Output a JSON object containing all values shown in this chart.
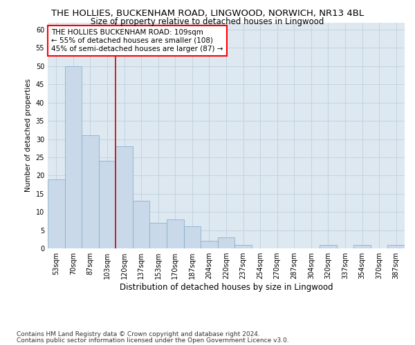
{
  "title": "THE HOLLIES, BUCKENHAM ROAD, LINGWOOD, NORWICH, NR13 4BL",
  "subtitle": "Size of property relative to detached houses in Lingwood",
  "xlabel": "Distribution of detached houses by size in Lingwood",
  "ylabel": "Number of detached properties",
  "categories": [
    "53sqm",
    "70sqm",
    "87sqm",
    "103sqm",
    "120sqm",
    "137sqm",
    "153sqm",
    "170sqm",
    "187sqm",
    "204sqm",
    "220sqm",
    "237sqm",
    "254sqm",
    "270sqm",
    "287sqm",
    "304sqm",
    "320sqm",
    "337sqm",
    "354sqm",
    "370sqm",
    "387sqm"
  ],
  "values": [
    19,
    50,
    31,
    24,
    28,
    13,
    7,
    8,
    6,
    2,
    3,
    1,
    0,
    0,
    0,
    0,
    1,
    0,
    1,
    0,
    1
  ],
  "bar_color": "#c9d9ea",
  "bar_edge_color": "#7aaac8",
  "bar_width": 1.0,
  "ylim": [
    0,
    62
  ],
  "yticks": [
    0,
    5,
    10,
    15,
    20,
    25,
    30,
    35,
    40,
    45,
    50,
    55,
    60
  ],
  "grid_color": "#b8ccdc",
  "background_color": "#dde8f0",
  "vline_x_idx": 3,
  "vline_color": "#cc0000",
  "annotation_line1": "THE HOLLIES BUCKENHAM ROAD: 109sqm",
  "annotation_line2": "← 55% of detached houses are smaller (108)",
  "annotation_line3": "45% of semi-detached houses are larger (87) →",
  "footer_line1": "Contains HM Land Registry data © Crown copyright and database right 2024.",
  "footer_line2": "Contains public sector information licensed under the Open Government Licence v3.0.",
  "title_fontsize": 9.5,
  "subtitle_fontsize": 8.5,
  "xlabel_fontsize": 8.5,
  "ylabel_fontsize": 7.5,
  "tick_fontsize": 7,
  "annot_fontsize": 7.5,
  "footer_fontsize": 6.5
}
